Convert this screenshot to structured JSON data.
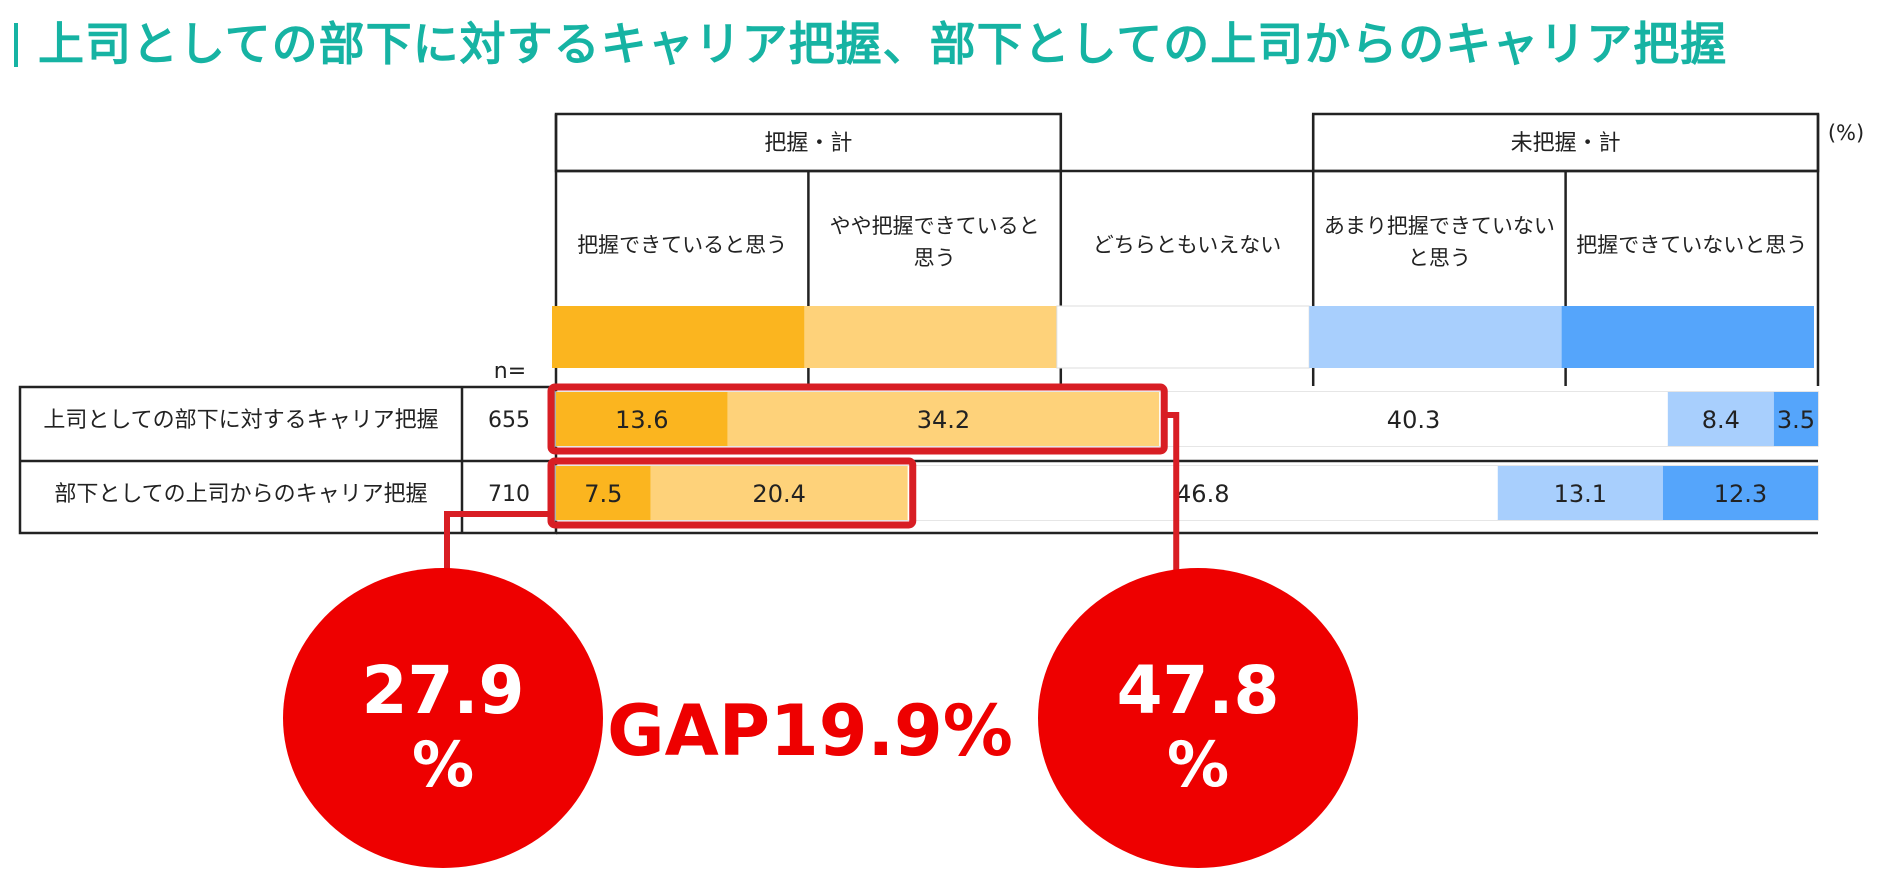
{
  "title": "上司としての部下に対するキャリア把握、部下としての上司からのキャリア把握",
  "unit": "(%)",
  "n_label": "n=",
  "colors": {
    "title": "#16b3a3",
    "accent": "#ee0000",
    "series": [
      "#fbb51f",
      "#fed27a",
      "#ffffff",
      "#a8cffd",
      "#55a5fb"
    ]
  },
  "group_headers": {
    "left": "把握・計",
    "right": "未把握・計"
  },
  "chart_data": {
    "type": "bar",
    "orientation": "horizontal-stacked-100",
    "series": [
      {
        "name": "把握できていると思う",
        "label_lines": [
          "把握できていると思う"
        ],
        "values": [
          13.6,
          7.5
        ]
      },
      {
        "name": "やや把握できていると思う",
        "label_lines": [
          "やや把握できていると",
          "思う"
        ],
        "values": [
          34.2,
          20.4
        ]
      },
      {
        "name": "どちらともいえない",
        "label_lines": [
          "どちらともいえない"
        ],
        "values": [
          40.3,
          46.8
        ]
      },
      {
        "name": "あまり把握できていないと思う",
        "label_lines": [
          "あまり把握できていない",
          "と思う"
        ],
        "values": [
          8.4,
          13.1
        ]
      },
      {
        "name": "把握できていないと思う",
        "label_lines": [
          "把握できていないと思う"
        ],
        "values": [
          3.5,
          12.3
        ]
      }
    ],
    "rows": [
      {
        "label": "上司としての部下に対するキャリア把握",
        "n": "655"
      },
      {
        "label": "部下としての上司からのキャリア把握",
        "n": "710"
      }
    ],
    "xlim": [
      0,
      100
    ]
  },
  "callouts": {
    "left": {
      "value": "27.9",
      "unit": "%"
    },
    "right": {
      "value": "47.8",
      "unit": "%"
    },
    "gap": "GAP19.9%"
  }
}
